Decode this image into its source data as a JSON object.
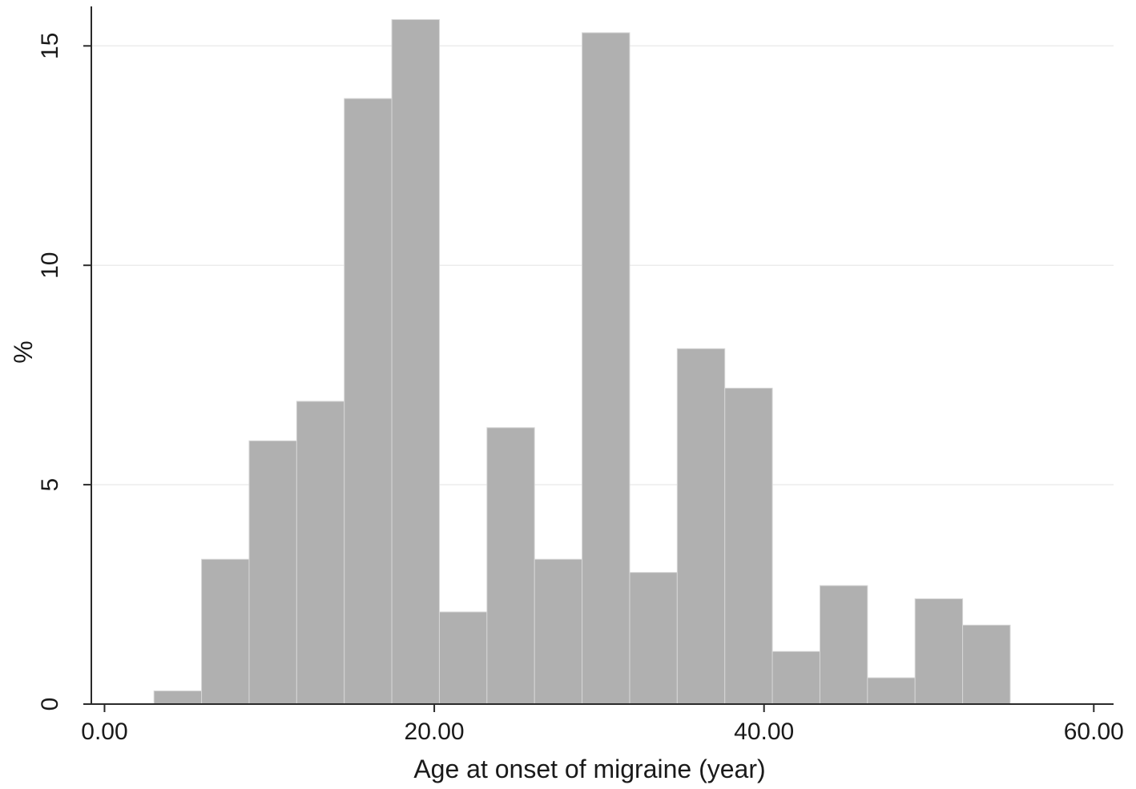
{
  "chart_data": {
    "type": "bar",
    "subtype": "histogram",
    "xlabel": "Age at onset of migraine (year)",
    "ylabel": "%",
    "xlim": [
      -0.8,
      61.2
    ],
    "ylim": [
      0,
      15.9
    ],
    "x_ticks": [
      0,
      20,
      40,
      60
    ],
    "x_tick_labels": [
      "0.00",
      "20.00",
      "40.00",
      "60.00"
    ],
    "y_ticks": [
      0,
      5,
      10,
      15
    ],
    "y_tick_labels": [
      "0",
      "5",
      "10",
      "15"
    ],
    "grid": "horizontal at y ticks",
    "bin_width": 2.885,
    "bin_start": 3.0,
    "bins": [
      {
        "x0": 3.0,
        "x1": 5.885,
        "value": 0.3
      },
      {
        "x0": 5.885,
        "x1": 8.77,
        "value": 3.3
      },
      {
        "x0": 8.77,
        "x1": 11.655,
        "value": 6.0
      },
      {
        "x0": 11.655,
        "x1": 14.54,
        "value": 6.9
      },
      {
        "x0": 14.54,
        "x1": 17.425,
        "value": 13.8
      },
      {
        "x0": 17.425,
        "x1": 20.31,
        "value": 15.6
      },
      {
        "x0": 20.31,
        "x1": 23.195,
        "value": 2.1
      },
      {
        "x0": 23.195,
        "x1": 26.08,
        "value": 6.3
      },
      {
        "x0": 26.08,
        "x1": 28.965,
        "value": 3.3
      },
      {
        "x0": 28.965,
        "x1": 31.85,
        "value": 15.3
      },
      {
        "x0": 31.85,
        "x1": 34.735,
        "value": 3.0
      },
      {
        "x0": 34.735,
        "x1": 37.62,
        "value": 8.1
      },
      {
        "x0": 37.62,
        "x1": 40.505,
        "value": 7.2
      },
      {
        "x0": 40.505,
        "x1": 43.39,
        "value": 1.2
      },
      {
        "x0": 43.39,
        "x1": 46.275,
        "value": 2.7
      },
      {
        "x0": 46.275,
        "x1": 49.16,
        "value": 0.6
      },
      {
        "x0": 49.16,
        "x1": 52.045,
        "value": 2.4
      },
      {
        "x0": 52.045,
        "x1": 54.93,
        "value": 1.8
      }
    ],
    "colors": {
      "bar": "#b0b0b0",
      "bar_edge": "#d6d6d6",
      "axis": "#2a2a2a",
      "grid": "#ececec"
    }
  }
}
